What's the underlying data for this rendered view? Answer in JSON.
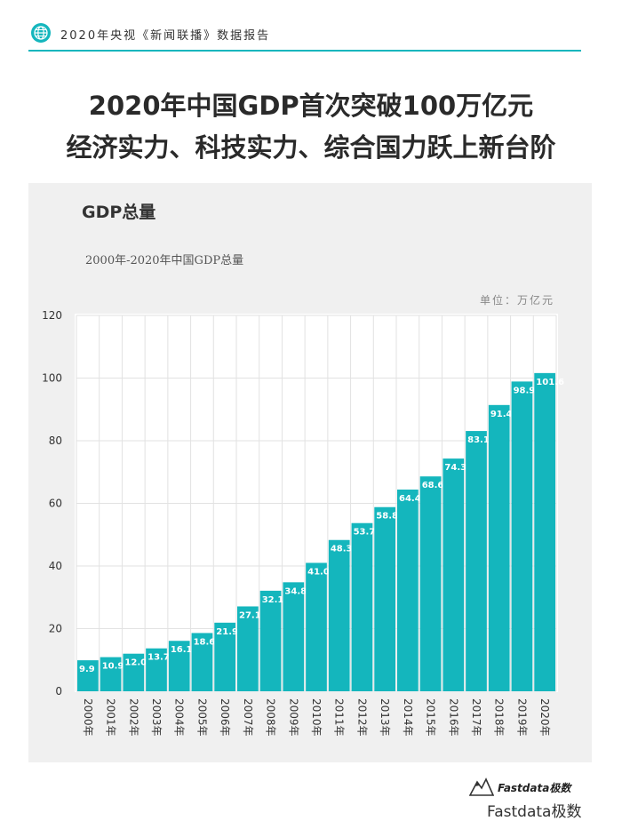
{
  "header": {
    "text": "2020年央视《新闻联播》数据报告",
    "icon": "globe-icon",
    "accent": "#14b6bd"
  },
  "headline": {
    "line1": "2020年中国GDP首次突破100万亿元",
    "line2": "经济实力、科技实力、综合国力跃上新台阶"
  },
  "section_title": "GDP总量",
  "chart_data": {
    "type": "bar",
    "title": "2000年-2020年中国GDP总量",
    "unit_label": "单位：万亿元",
    "categories": [
      "2000年",
      "2001年",
      "2002年",
      "2003年",
      "2004年",
      "2005年",
      "2006年",
      "2007年",
      "2008年",
      "2009年",
      "2010年",
      "2011年",
      "2012年",
      "2013年",
      "2014年",
      "2015年",
      "2016年",
      "2017年",
      "2018年",
      "2019年",
      "2020年"
    ],
    "values": [
      9.9,
      10.9,
      12.0,
      13.7,
      16.1,
      18.6,
      21.9,
      27.1,
      32.1,
      34.8,
      41.0,
      48.3,
      53.7,
      58.8,
      64.4,
      68.6,
      74.3,
      83.1,
      91.4,
      98.9,
      101.6
    ],
    "value_labels": [
      "9.9",
      "10.9",
      "12.0",
      "13.7",
      "16.1",
      "18.6",
      "21.9",
      "27.1",
      "32.1",
      "34.8",
      "41.0",
      "48.3",
      "53.7",
      "58.8",
      "64.4",
      "68.6",
      "74.3",
      "83.1",
      "91.4",
      "98.9",
      "101.6"
    ],
    "ylim": [
      0,
      120
    ],
    "yticks": [
      "0",
      "20",
      "40",
      "60",
      "80",
      "100",
      "120"
    ],
    "grid": true,
    "bar_color": "#14b6bd",
    "xlabel": "",
    "ylabel": ""
  },
  "brand": {
    "name": "Fastdata极数",
    "watermark": "Fastdata极数"
  }
}
